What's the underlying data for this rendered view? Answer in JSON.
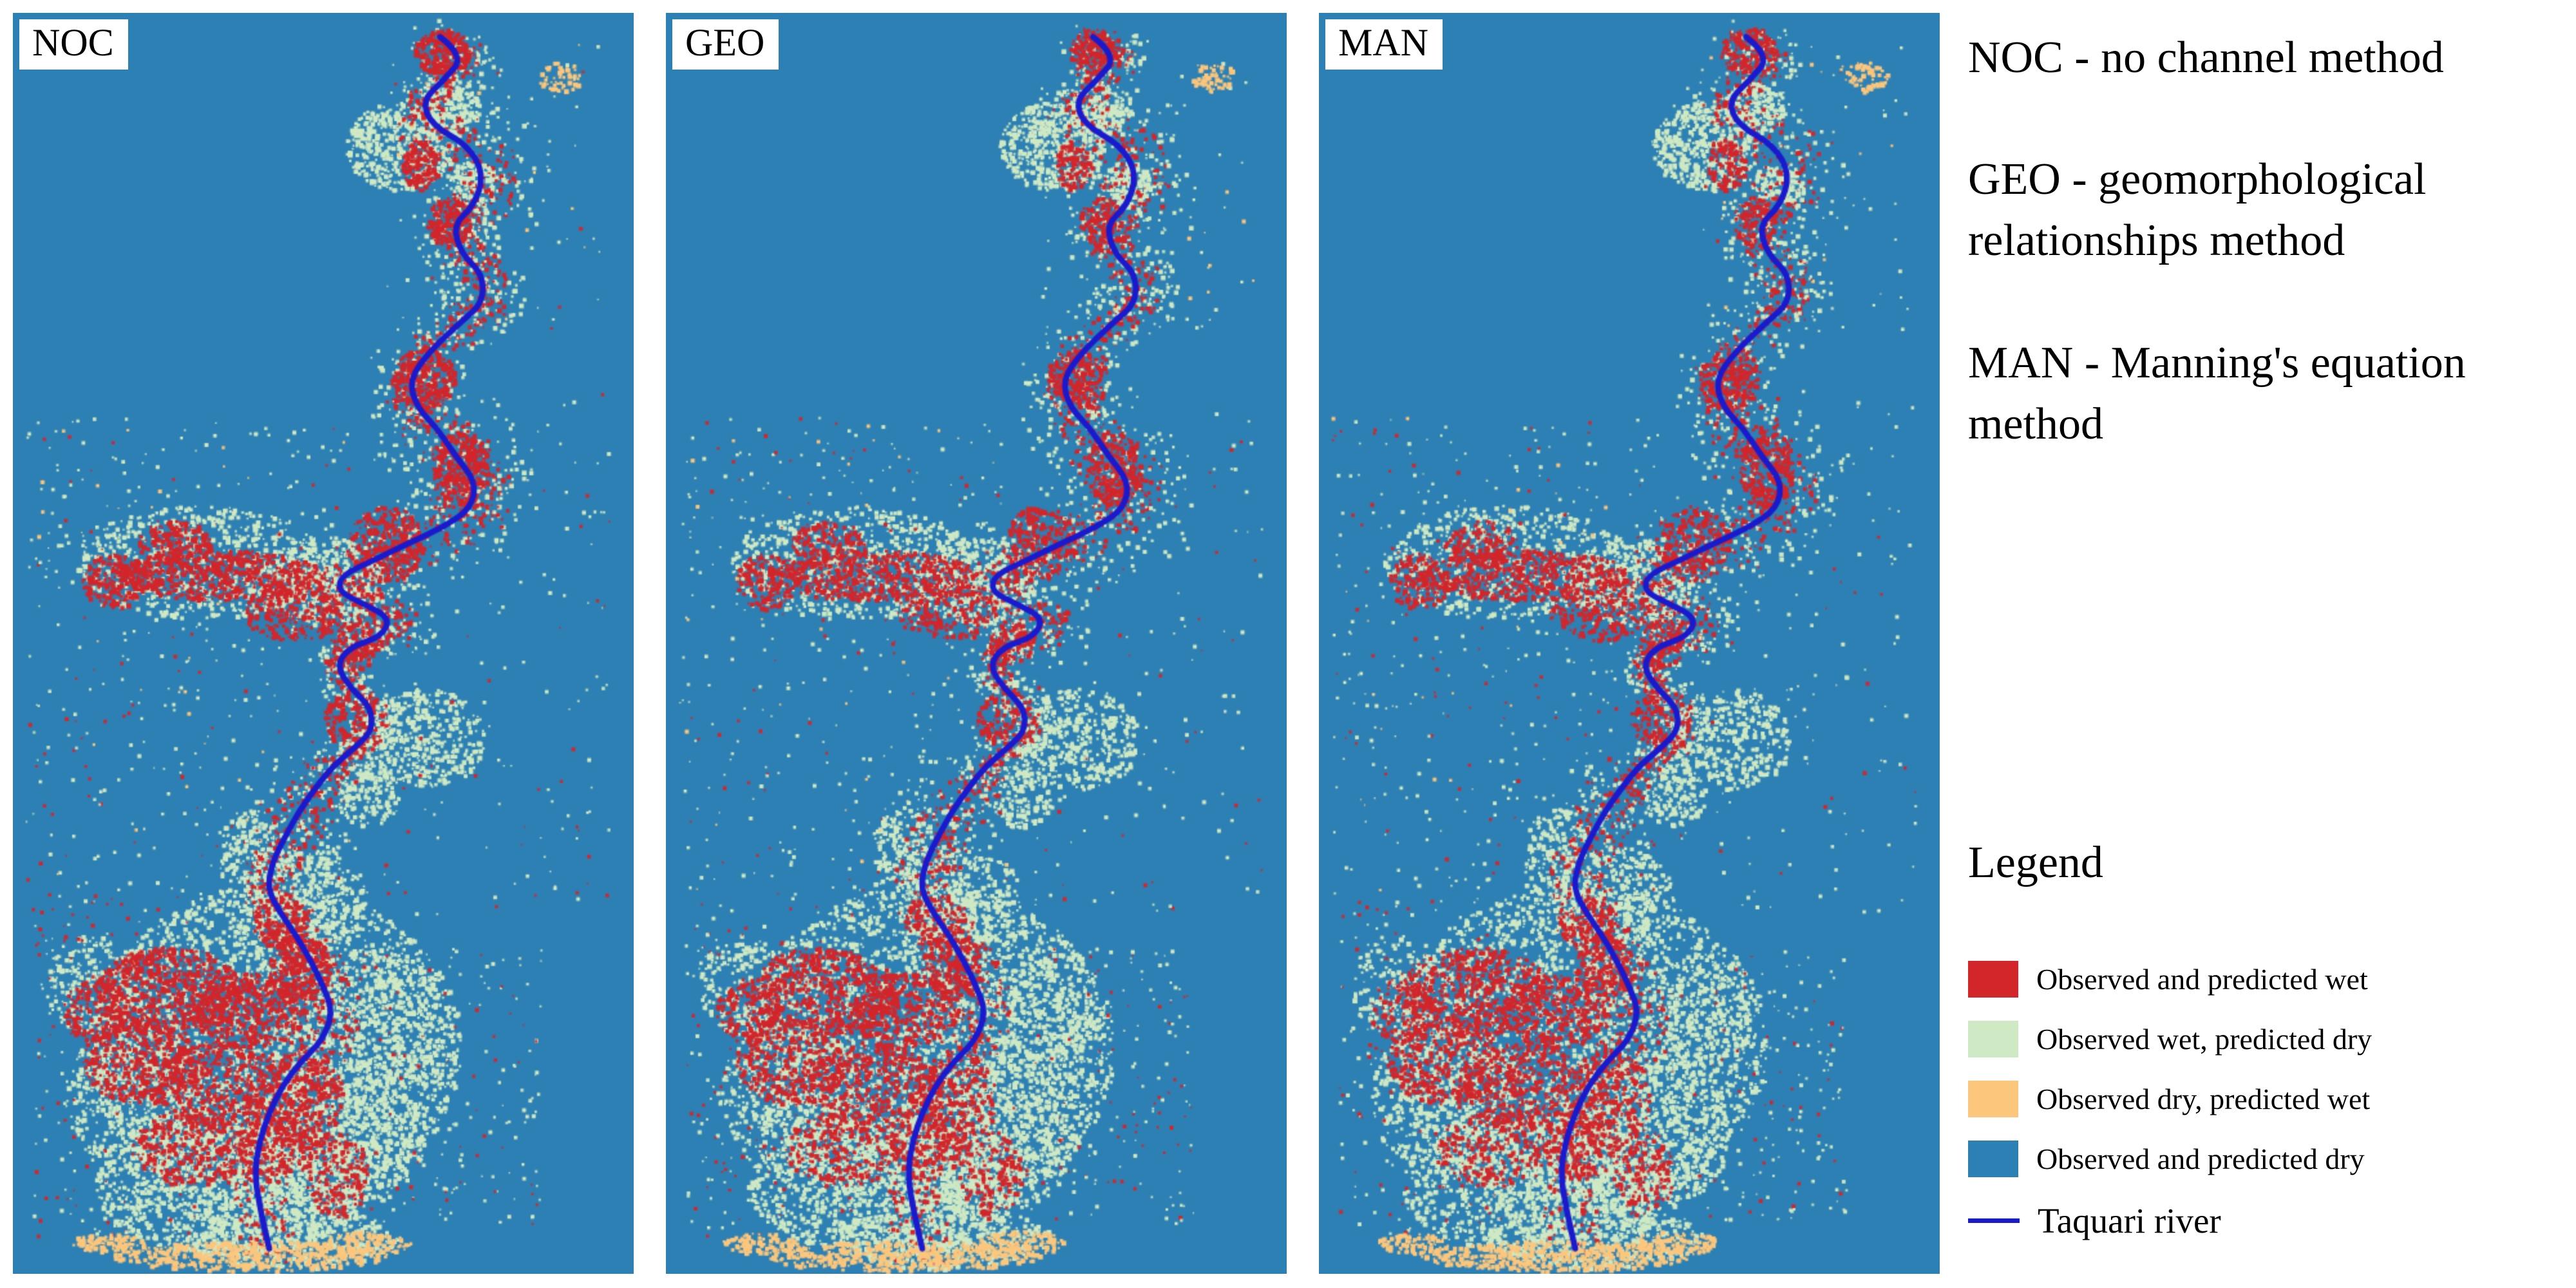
{
  "colors": {
    "wet_both": "#d2262b",
    "obs_wet_pred_dry": "#cfe9c4",
    "obs_dry_pred_wet": "#fcc77d",
    "dry_both": "#2d80b3",
    "river": "#1a1acd"
  },
  "panels": [
    {
      "label": "NOC",
      "seed": 11,
      "red_mult": 1.0,
      "green_mult": 1.0
    },
    {
      "label": "GEO",
      "seed": 23,
      "red_mult": 0.82,
      "green_mult": 0.95
    },
    {
      "label": "MAN",
      "seed": 37,
      "red_mult": 0.8,
      "green_mult": 0.9
    }
  ],
  "method_descriptions": [
    {
      "text": "NOC - no channel method"
    },
    {
      "text": "GEO - geomorphological relationships method"
    },
    {
      "text": "MAN - Manning's equation method"
    }
  ],
  "legend": {
    "title": "Legend",
    "items": [
      {
        "label": "Observed and predicted wet",
        "color": "#d2262b"
      },
      {
        "label": "Observed wet, predicted dry",
        "color": "#cfe9c4"
      },
      {
        "label": "Observed dry, predicted wet",
        "color": "#fcc77d"
      },
      {
        "label": "Observed and predicted dry",
        "color": "#2d80b3"
      }
    ],
    "river_item": {
      "label": "Taquari river",
      "color": "#1a1acd"
    }
  },
  "river_path": [
    [
      0.688,
      0.019
    ],
    [
      0.728,
      0.034
    ],
    [
      0.693,
      0.054
    ],
    [
      0.659,
      0.07
    ],
    [
      0.675,
      0.089
    ],
    [
      0.733,
      0.105
    ],
    [
      0.759,
      0.128
    ],
    [
      0.743,
      0.153
    ],
    [
      0.709,
      0.168
    ],
    [
      0.722,
      0.191
    ],
    [
      0.757,
      0.207
    ],
    [
      0.757,
      0.23
    ],
    [
      0.722,
      0.245
    ],
    [
      0.672,
      0.268
    ],
    [
      0.638,
      0.291
    ],
    [
      0.651,
      0.313
    ],
    [
      0.683,
      0.329
    ],
    [
      0.712,
      0.351
    ],
    [
      0.746,
      0.372
    ],
    [
      0.738,
      0.393
    ],
    [
      0.693,
      0.408
    ],
    [
      0.635,
      0.421
    ],
    [
      0.582,
      0.434
    ],
    [
      0.529,
      0.446
    ],
    [
      0.524,
      0.459
    ],
    [
      0.566,
      0.469
    ],
    [
      0.608,
      0.48
    ],
    [
      0.593,
      0.495
    ],
    [
      0.542,
      0.503
    ],
    [
      0.521,
      0.518
    ],
    [
      0.545,
      0.536
    ],
    [
      0.577,
      0.551
    ],
    [
      0.579,
      0.569
    ],
    [
      0.553,
      0.582
    ],
    [
      0.516,
      0.597
    ],
    [
      0.487,
      0.615
    ],
    [
      0.46,
      0.634
    ],
    [
      0.439,
      0.653
    ],
    [
      0.418,
      0.673
    ],
    [
      0.41,
      0.695
    ],
    [
      0.431,
      0.714
    ],
    [
      0.458,
      0.733
    ],
    [
      0.481,
      0.753
    ],
    [
      0.5,
      0.772
    ],
    [
      0.516,
      0.793
    ],
    [
      0.497,
      0.816
    ],
    [
      0.463,
      0.832
    ],
    [
      0.434,
      0.851
    ],
    [
      0.413,
      0.872
    ],
    [
      0.397,
      0.895
    ],
    [
      0.389,
      0.921
    ],
    [
      0.399,
      0.95
    ],
    [
      0.413,
      0.98
    ]
  ]
}
